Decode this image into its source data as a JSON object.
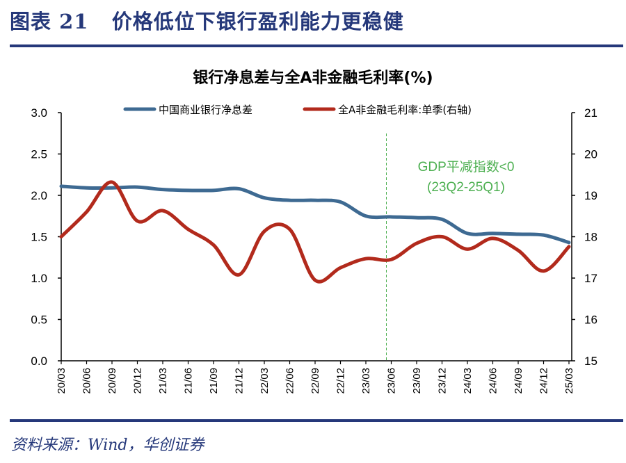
{
  "figure_title": "图表 21   价格低位下银行盈利能力更稳健",
  "source": "资料来源：Wind，华创证券",
  "chart_data": {
    "type": "line",
    "title": "银行净息差与全A非金融毛利率(%)",
    "categories": [
      "20/03",
      "20/06",
      "20/09",
      "20/12",
      "21/03",
      "21/06",
      "21/09",
      "21/12",
      "22/03",
      "22/06",
      "22/09",
      "22/12",
      "23/03",
      "23/06",
      "23/09",
      "23/12",
      "24/03",
      "24/06",
      "24/09",
      "24/12",
      "25/03"
    ],
    "series": [
      {
        "name": "中国商业银行净息差",
        "axis": "left",
        "color": "#3e6a92",
        "values": [
          2.11,
          2.09,
          2.09,
          2.1,
          2.07,
          2.06,
          2.06,
          2.08,
          1.97,
          1.94,
          1.94,
          1.92,
          1.75,
          1.74,
          1.73,
          1.71,
          1.54,
          1.54,
          1.53,
          1.52,
          1.43
        ]
      },
      {
        "name": "全A非金融毛利率:单季(右轴)",
        "axis": "right",
        "color": "#b22a1c",
        "values": [
          18.0,
          18.6,
          19.32,
          18.38,
          18.63,
          18.18,
          17.8,
          17.08,
          18.13,
          18.18,
          16.95,
          17.25,
          17.47,
          17.45,
          17.84,
          18.0,
          17.7,
          17.96,
          17.67,
          17.17,
          17.76
        ]
      }
    ],
    "left_axis": {
      "range": [
        0,
        3.0
      ],
      "ticks": [
        "0.0",
        "0.5",
        "1.0",
        "1.5",
        "2.0",
        "2.5",
        "3.0"
      ]
    },
    "right_axis": {
      "range": [
        15,
        21
      ],
      "ticks": [
        "15",
        "16",
        "17",
        "18",
        "19",
        "20",
        "21"
      ]
    },
    "legend_position": "top",
    "annotation": {
      "line1": "GDP平减指数<0",
      "line2": "(23Q2-25Q1)",
      "marker_category": "23/06",
      "color": "#4caf50"
    }
  }
}
